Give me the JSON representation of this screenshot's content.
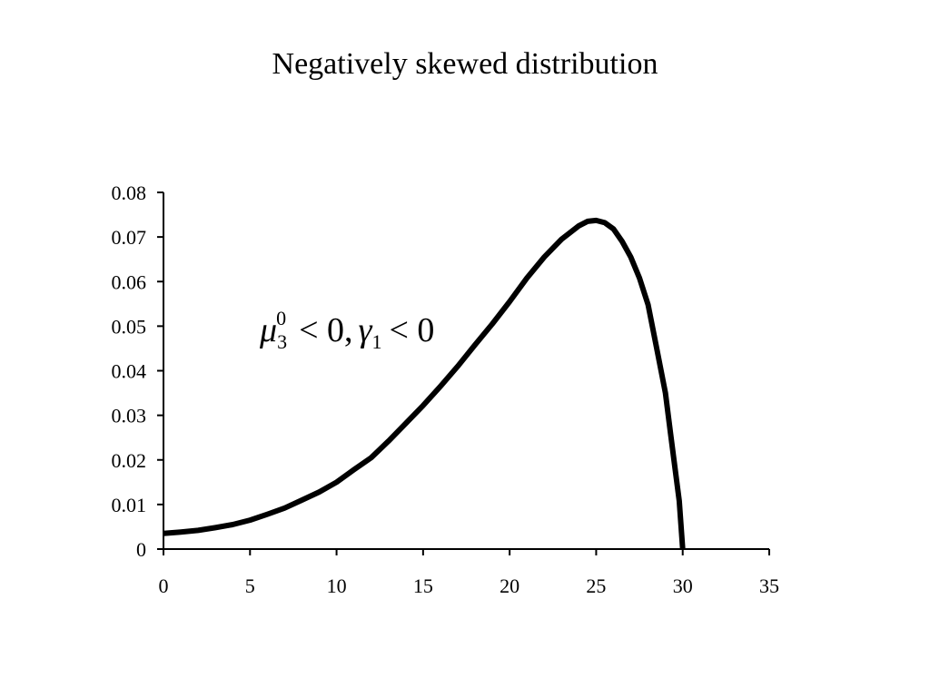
{
  "chart_data": {
    "type": "line",
    "title": "Negatively skewed distribution",
    "xlabel": "",
    "ylabel": "",
    "xlim": [
      0,
      35
    ],
    "ylim": [
      0,
      0.08
    ],
    "xticks": [
      "0",
      "5",
      "10",
      "15",
      "20",
      "25",
      "30",
      "35"
    ],
    "yticks": [
      "0",
      "0.01",
      "0.02",
      "0.03",
      "0.04",
      "0.05",
      "0.06",
      "0.07",
      "0.08"
    ],
    "grid": false,
    "legend": "none",
    "annotation": {
      "mu": "μ",
      "mu_sub": "3",
      "mu_sup": "0",
      "rel1": "< 0,",
      "gamma": "γ",
      "gamma_sub": "1",
      "rel2": "< 0"
    },
    "series": [
      {
        "color": "#000000",
        "x": [
          0,
          1,
          2,
          3,
          4,
          5,
          6,
          7,
          8,
          9,
          10,
          11,
          12,
          13,
          14,
          15,
          16,
          17,
          18,
          19,
          20,
          21,
          22,
          23,
          24,
          24.5,
          25,
          25.5,
          26,
          26.5,
          27,
          27.5,
          28,
          28.5,
          29,
          29.3,
          29.6,
          29.8,
          30
        ],
        "y": [
          0.0035,
          0.0038,
          0.0042,
          0.0048,
          0.0055,
          0.0065,
          0.0078,
          0.0092,
          0.011,
          0.0128,
          0.015,
          0.0178,
          0.0205,
          0.0242,
          0.0282,
          0.0322,
          0.0365,
          0.041,
          0.0458,
          0.0505,
          0.0555,
          0.0608,
          0.0655,
          0.0695,
          0.0725,
          0.0735,
          0.0737,
          0.0732,
          0.0718,
          0.069,
          0.0655,
          0.0608,
          0.0548,
          0.045,
          0.035,
          0.0258,
          0.0168,
          0.0108,
          0.0
        ]
      }
    ]
  }
}
